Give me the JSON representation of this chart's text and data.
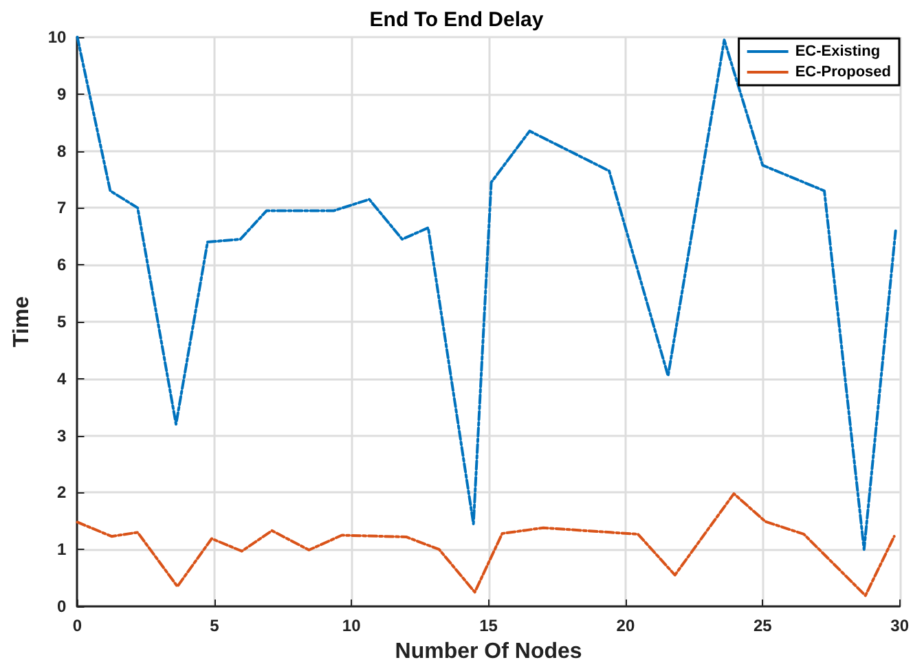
{
  "chart_data": {
    "type": "line",
    "title": "End To End Delay",
    "xlabel": "Number Of Nodes",
    "ylabel": "Time",
    "xlim": [
      0,
      30
    ],
    "xticks": [
      0,
      5,
      10,
      15,
      20,
      25,
      30
    ],
    "ylim": [
      0,
      10
    ],
    "yticks": [
      0,
      1,
      2,
      3,
      4,
      5,
      6,
      7,
      8,
      9,
      10
    ],
    "grid": true,
    "legend": "top right",
    "marker": "none",
    "line_style": "dashed",
    "series": [
      {
        "name": "EC-Existing",
        "color": "#0072bd",
        "x": [
          0,
          1.2,
          2.2,
          3.6,
          4.75,
          5.95,
          6.9,
          9.35,
          10.65,
          11.85,
          12.8,
          14.45,
          15.1,
          16.5,
          19.4,
          21.55,
          23.6,
          25,
          27.25,
          28.7,
          29.85
        ],
        "values": [
          10,
          7.3,
          7,
          3.2,
          6.4,
          6.45,
          6.95,
          6.95,
          7.15,
          6.45,
          6.65,
          1.45,
          7.45,
          8.35,
          7.65,
          4.05,
          9.95,
          7.75,
          7.3,
          1,
          6.6
        ]
      },
      {
        "name": "EC-Proposed",
        "color": "#d95319",
        "x": [
          0,
          1.25,
          2.2,
          3.65,
          4.9,
          6,
          7.1,
          8.45,
          9.65,
          12,
          13.2,
          14.5,
          15.5,
          17,
          19.45,
          20.45,
          21.8,
          23.95,
          25.1,
          26.5,
          28.75,
          29.8
        ],
        "values": [
          1.48,
          1.23,
          1.3,
          0.35,
          1.19,
          0.97,
          1.33,
          0.99,
          1.25,
          1.22,
          1,
          0.25,
          1.28,
          1.38,
          1.3,
          1.27,
          0.55,
          1.98,
          1.49,
          1.27,
          0.19,
          1.23
        ]
      }
    ]
  }
}
